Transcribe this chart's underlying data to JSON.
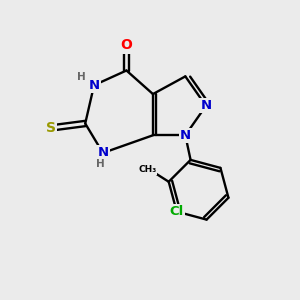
{
  "bg_color": "#ebebeb",
  "atom_colors": {
    "N": "#0000cc",
    "O": "#ff0000",
    "S": "#999900",
    "Cl": "#00aa00",
    "H": "#666666",
    "C": "#000000"
  },
  "bond_color": "#000000",
  "figsize": [
    3.0,
    3.0
  ],
  "dpi": 100,
  "xlim": [
    0,
    10
  ],
  "ylim": [
    0,
    10
  ]
}
